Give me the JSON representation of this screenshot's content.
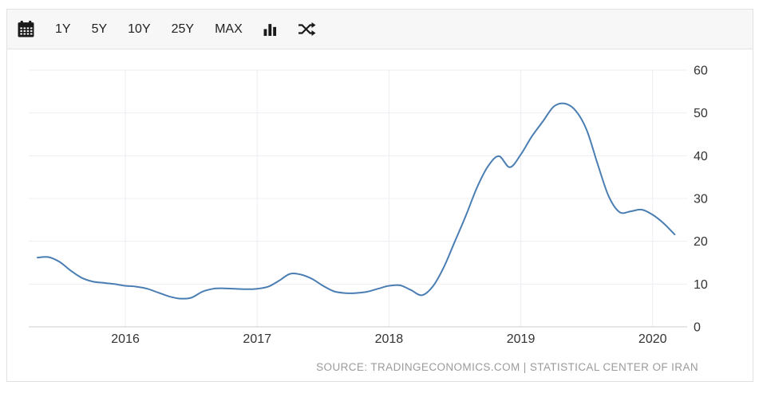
{
  "toolbar": {
    "range_buttons": [
      "1Y",
      "5Y",
      "10Y",
      "25Y",
      "MAX"
    ],
    "icons": [
      "calendar-icon",
      "bar-chart-icon",
      "shuffle-icon"
    ]
  },
  "chart_data": {
    "type": "line",
    "series": [
      {
        "color": "#4a7eb3",
        "points": [
          [
            "2015-05",
            16.2
          ],
          [
            "2015-06",
            16.3
          ],
          [
            "2015-07",
            15.2
          ],
          [
            "2015-08",
            13.2
          ],
          [
            "2015-09",
            11.5
          ],
          [
            "2015-10",
            10.6
          ],
          [
            "2015-11",
            10.3
          ],
          [
            "2015-12",
            10.0
          ],
          [
            "2016-01",
            9.6
          ],
          [
            "2016-02",
            9.4
          ],
          [
            "2016-03",
            8.9
          ],
          [
            "2016-04",
            8.0
          ],
          [
            "2016-05",
            7.1
          ],
          [
            "2016-06",
            6.6
          ],
          [
            "2016-07",
            6.8
          ],
          [
            "2016-08",
            8.2
          ],
          [
            "2016-09",
            8.9
          ],
          [
            "2016-10",
            9.0
          ],
          [
            "2016-11",
            8.9
          ],
          [
            "2016-12",
            8.8
          ],
          [
            "2017-01",
            8.9
          ],
          [
            "2017-02",
            9.4
          ],
          [
            "2017-03",
            10.8
          ],
          [
            "2017-04",
            12.4
          ],
          [
            "2017-05",
            12.2
          ],
          [
            "2017-06",
            11.2
          ],
          [
            "2017-07",
            9.6
          ],
          [
            "2017-08",
            8.3
          ],
          [
            "2017-09",
            7.9
          ],
          [
            "2017-10",
            7.9
          ],
          [
            "2017-11",
            8.2
          ],
          [
            "2017-12",
            8.9
          ],
          [
            "2018-01",
            9.6
          ],
          [
            "2018-02",
            9.7
          ],
          [
            "2018-03",
            8.6
          ],
          [
            "2018-04",
            7.4
          ],
          [
            "2018-05",
            9.5
          ],
          [
            "2018-06",
            14.0
          ],
          [
            "2018-07",
            20.0
          ],
          [
            "2018-08",
            26.0
          ],
          [
            "2018-09",
            32.5
          ],
          [
            "2018-10",
            37.5
          ],
          [
            "2018-11",
            39.9
          ],
          [
            "2018-12",
            37.3
          ],
          [
            "2019-01",
            40.3
          ],
          [
            "2019-02",
            44.5
          ],
          [
            "2019-03",
            48.0
          ],
          [
            "2019-04",
            51.5
          ],
          [
            "2019-05",
            52.2
          ],
          [
            "2019-06",
            50.5
          ],
          [
            "2019-07",
            46.0
          ],
          [
            "2019-08",
            38.0
          ],
          [
            "2019-09",
            30.5
          ],
          [
            "2019-10",
            26.8
          ],
          [
            "2019-11",
            27.0
          ],
          [
            "2019-12",
            27.4
          ],
          [
            "2020-01",
            26.2
          ],
          [
            "2020-02",
            24.2
          ],
          [
            "2020-03",
            21.6
          ]
        ]
      }
    ],
    "x_ticks": [
      2016,
      2017,
      2018,
      2019,
      2020
    ],
    "y_ticks": [
      0,
      10,
      20,
      30,
      40,
      50,
      60
    ],
    "ylim": [
      0,
      60
    ],
    "x_range_years": [
      2015.267,
      2020.262
    ],
    "grid": true,
    "legend": "none",
    "y_axis_side": "right"
  },
  "source": {
    "text": "SOURCE: TRADINGECONOMICS.COM | STATISTICAL CENTER OF IRAN"
  },
  "colors": {
    "line": "#4a7eb3",
    "toolbar_bg": "#f7f7f7",
    "border": "#e2e2e2",
    "grid": "#efecf2",
    "axis_line": "#cccccc",
    "tick_text": "#333333",
    "source_text": "#9b9b9b",
    "toolbar_icon": "#1a1a1a"
  }
}
